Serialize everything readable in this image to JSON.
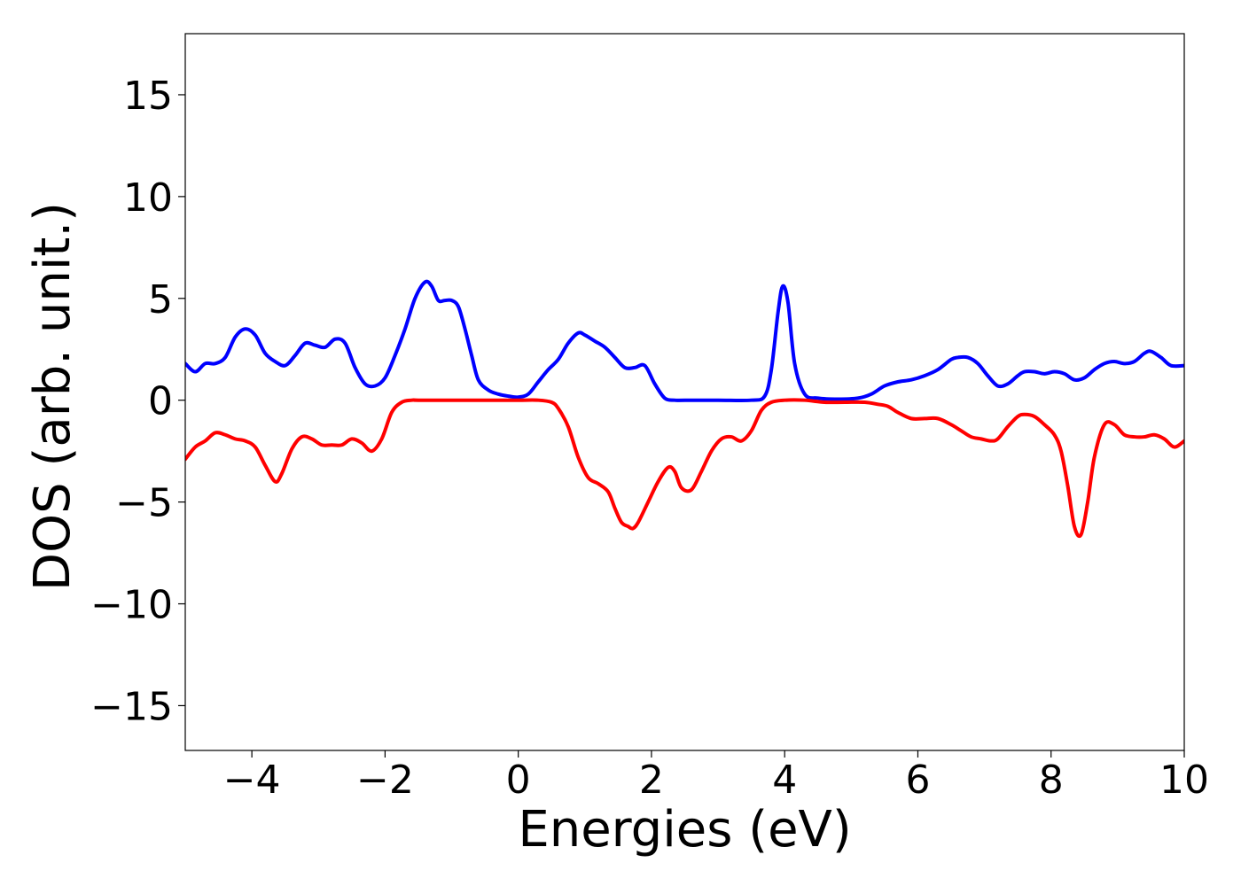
{
  "chart_data": {
    "type": "line",
    "title": "",
    "xlabel": "Energies (eV)",
    "ylabel": "DOS (arb. unit.)",
    "xlim": [
      -5,
      10
    ],
    "ylim": [
      -17.2,
      18
    ],
    "grid": false,
    "legend": "none",
    "x_ticks": [
      -4,
      -2,
      0,
      2,
      4,
      6,
      8,
      10
    ],
    "x_tick_labels": [
      "−4",
      "−2",
      "0",
      "2",
      "4",
      "6",
      "8",
      "10"
    ],
    "y_ticks": [
      15,
      10,
      5,
      0,
      -5,
      -10,
      -15
    ],
    "y_tick_labels": [
      "15",
      "10",
      "5",
      "0",
      "−5",
      "−10",
      "−15"
    ],
    "series": [
      {
        "color": "#0000ff",
        "x": [
          -5.0,
          -4.85,
          -4.7,
          -4.55,
          -4.4,
          -4.25,
          -4.1,
          -3.95,
          -3.8,
          -3.65,
          -3.5,
          -3.35,
          -3.2,
          -3.05,
          -2.9,
          -2.75,
          -2.6,
          -2.45,
          -2.3,
          -2.15,
          -2.0,
          -1.85,
          -1.7,
          -1.55,
          -1.4,
          -1.3,
          -1.2,
          -1.1,
          -1.0,
          -0.9,
          -0.8,
          -0.7,
          -0.6,
          -0.45,
          -0.3,
          -0.15,
          0.0,
          0.15,
          0.3,
          0.45,
          0.6,
          0.75,
          0.9,
          1.0,
          1.15,
          1.3,
          1.45,
          1.6,
          1.75,
          1.9,
          2.05,
          2.2,
          2.35,
          2.5,
          3.0,
          3.5,
          3.7,
          3.8,
          3.9,
          3.97,
          4.05,
          4.15,
          4.3,
          4.5,
          4.8,
          5.1,
          5.3,
          5.5,
          5.7,
          5.9,
          6.1,
          6.3,
          6.5,
          6.6,
          6.75,
          6.9,
          7.05,
          7.2,
          7.35,
          7.5,
          7.6,
          7.75,
          7.9,
          8.05,
          8.2,
          8.35,
          8.5,
          8.65,
          8.8,
          8.95,
          9.1,
          9.25,
          9.4,
          9.5,
          9.65,
          9.8,
          10.0
        ],
        "y": [
          1.8,
          1.4,
          1.8,
          1.8,
          2.1,
          3.1,
          3.5,
          3.2,
          2.3,
          1.9,
          1.7,
          2.2,
          2.8,
          2.7,
          2.6,
          3.0,
          2.8,
          1.6,
          0.8,
          0.7,
          1.1,
          2.2,
          3.5,
          5.0,
          5.8,
          5.6,
          4.9,
          4.9,
          4.9,
          4.6,
          3.5,
          2.2,
          1.0,
          0.5,
          0.3,
          0.2,
          0.15,
          0.3,
          0.9,
          1.5,
          2.0,
          2.8,
          3.3,
          3.2,
          2.9,
          2.6,
          2.1,
          1.6,
          1.6,
          1.7,
          0.8,
          0.1,
          0.0,
          0.0,
          0.0,
          0.0,
          0.2,
          1.5,
          4.3,
          5.6,
          4.8,
          1.8,
          0.3,
          0.1,
          0.05,
          0.1,
          0.3,
          0.7,
          0.9,
          1.0,
          1.2,
          1.5,
          2.0,
          2.1,
          2.1,
          1.8,
          1.2,
          0.7,
          0.8,
          1.2,
          1.4,
          1.4,
          1.3,
          1.4,
          1.3,
          1.0,
          1.1,
          1.5,
          1.8,
          1.9,
          1.8,
          1.9,
          2.3,
          2.4,
          2.1,
          1.7,
          1.7
        ]
      },
      {
        "color": "#ff0000",
        "x": [
          -5.0,
          -4.85,
          -4.7,
          -4.55,
          -4.4,
          -4.25,
          -4.1,
          -3.95,
          -3.8,
          -3.65,
          -3.55,
          -3.4,
          -3.25,
          -3.1,
          -2.95,
          -2.8,
          -2.65,
          -2.5,
          -2.35,
          -2.2,
          -2.05,
          -1.9,
          -1.75,
          -1.6,
          -1.5,
          -1.0,
          -0.5,
          0.0,
          0.3,
          0.5,
          0.6,
          0.75,
          0.9,
          1.05,
          1.2,
          1.35,
          1.45,
          1.55,
          1.65,
          1.72,
          1.8,
          1.95,
          2.1,
          2.25,
          2.35,
          2.45,
          2.6,
          2.75,
          2.9,
          3.05,
          3.2,
          3.35,
          3.5,
          3.65,
          3.8,
          4.0,
          4.3,
          4.6,
          4.9,
          5.2,
          5.4,
          5.55,
          5.7,
          5.9,
          6.1,
          6.3,
          6.5,
          6.65,
          6.8,
          6.95,
          7.1,
          7.2,
          7.35,
          7.5,
          7.6,
          7.75,
          7.9,
          8.05,
          8.15,
          8.25,
          8.35,
          8.45,
          8.55,
          8.65,
          8.8,
          8.95,
          9.1,
          9.25,
          9.4,
          9.55,
          9.7,
          9.85,
          10.0
        ],
        "y": [
          -2.9,
          -2.3,
          -2.0,
          -1.6,
          -1.7,
          -1.9,
          -2.0,
          -2.3,
          -3.2,
          -4.0,
          -3.6,
          -2.4,
          -1.8,
          -1.9,
          -2.2,
          -2.2,
          -2.2,
          -1.9,
          -2.1,
          -2.5,
          -1.9,
          -0.6,
          -0.1,
          0.0,
          0.0,
          0.0,
          0.0,
          0.0,
          0.0,
          -0.1,
          -0.4,
          -1.3,
          -2.8,
          -3.8,
          -4.1,
          -4.5,
          -5.3,
          -6.0,
          -6.2,
          -6.3,
          -6.0,
          -5.0,
          -4.0,
          -3.3,
          -3.5,
          -4.3,
          -4.4,
          -3.5,
          -2.5,
          -1.9,
          -1.8,
          -2.0,
          -1.5,
          -0.5,
          -0.1,
          0.0,
          0.0,
          -0.1,
          -0.1,
          -0.1,
          -0.2,
          -0.3,
          -0.6,
          -0.9,
          -0.9,
          -0.9,
          -1.2,
          -1.5,
          -1.8,
          -1.9,
          -2.0,
          -1.9,
          -1.3,
          -0.8,
          -0.7,
          -0.8,
          -1.2,
          -1.7,
          -2.5,
          -4.2,
          -6.2,
          -6.6,
          -5.0,
          -2.8,
          -1.2,
          -1.2,
          -1.7,
          -1.8,
          -1.8,
          -1.7,
          -1.9,
          -2.3,
          -2.0
        ]
      }
    ]
  }
}
